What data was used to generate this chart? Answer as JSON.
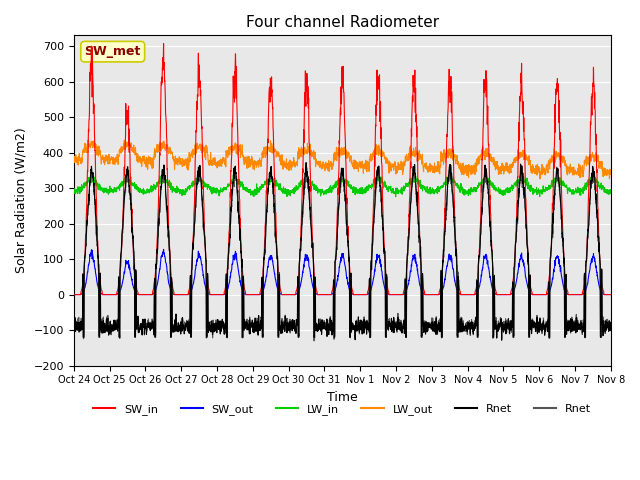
{
  "title": "Four channel Radiometer",
  "xlabel": "Time",
  "ylabel": "Solar Radiation (W/m2)",
  "ylim": [
    -200,
    730
  ],
  "yticks": [
    -200,
    -100,
    0,
    100,
    200,
    300,
    400,
    500,
    600,
    700
  ],
  "xtick_labels": [
    "Oct 24",
    "Oct 25",
    "Oct 26",
    "Oct 27",
    "Oct 28",
    "Oct 29",
    "Oct 30",
    "Oct 31",
    "Nov 1",
    "Nov 2",
    "Nov 3",
    "Nov 4",
    "Nov 5",
    "Nov 6",
    "Nov 7",
    "Nov 8"
  ],
  "n_days": 15,
  "annotation_text": "SW_met",
  "annotation_bg": "#ffffcc",
  "annotation_border": "#cccc00",
  "annotation_text_color": "#8b0000",
  "colors": {
    "SW_in": "#ff0000",
    "SW_out": "#0000ff",
    "LW_in": "#00cc00",
    "LW_out": "#ff8800",
    "Rnet_black": "#000000",
    "Rnet_dark": "#333333"
  },
  "bg_color": "#e8e8e8",
  "legend_labels": [
    "SW_in",
    "SW_out",
    "LW_in",
    "LW_out",
    "Rnet",
    "Rnet"
  ]
}
